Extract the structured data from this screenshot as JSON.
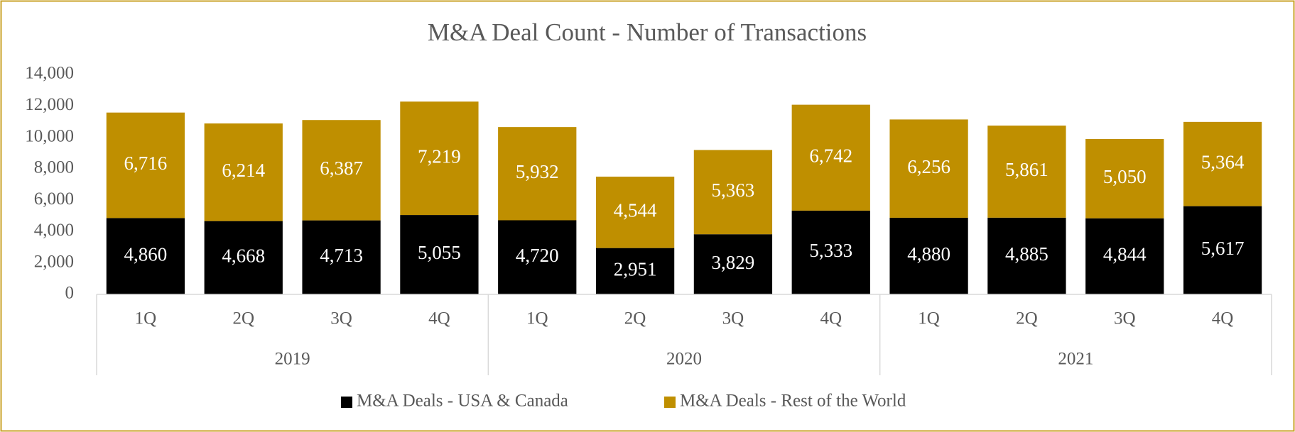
{
  "chart_data": {
    "type": "stacked_bar",
    "title": "M&A Deal Count - Number of Transactions",
    "categories": [
      "1Q",
      "2Q",
      "3Q",
      "4Q",
      "1Q",
      "2Q",
      "3Q",
      "4Q",
      "1Q",
      "2Q",
      "3Q",
      "4Q"
    ],
    "category_groups": [
      "2019",
      "2020",
      "2021"
    ],
    "series": [
      {
        "name": "M&A Deals - USA & Canada",
        "color": "#000000",
        "values": [
          4860,
          4668,
          4713,
          5055,
          4720,
          2951,
          3829,
          5333,
          4880,
          4885,
          4844,
          5617
        ],
        "value_labels": [
          "4,860",
          "4,668",
          "4,713",
          "5,055",
          "4,720",
          "2,951",
          "3,829",
          "5,333",
          "4,880",
          "4,885",
          "4,844",
          "5,617"
        ]
      },
      {
        "name": "M&A Deals - Rest of the World",
        "color": "#bf8f00",
        "values": [
          6716,
          6214,
          6387,
          7219,
          5932,
          4544,
          5363,
          6742,
          6256,
          5861,
          5050,
          5364
        ],
        "value_labels": [
          "6,716",
          "6,214",
          "6,387",
          "7,219",
          "5,932",
          "4,544",
          "5,363",
          "6,742",
          "6,256",
          "5,861",
          "5,050",
          "5,364"
        ]
      }
    ],
    "ylim": [
      0,
      14000
    ],
    "yticks": [
      0,
      {
        "value": 2000,
        "label": "2,000"
      },
      {
        "value": 4000,
        "label": "4,000"
      },
      {
        "value": 6000,
        "label": "6,000"
      },
      {
        "value": 8000,
        "label": "8,000"
      },
      {
        "value": 10000,
        "label": "10,000"
      },
      {
        "value": 12000,
        "label": "12,000"
      },
      {
        "value": 14000,
        "label": "14,000"
      }
    ],
    "grid": false,
    "legend": "bottom"
  }
}
